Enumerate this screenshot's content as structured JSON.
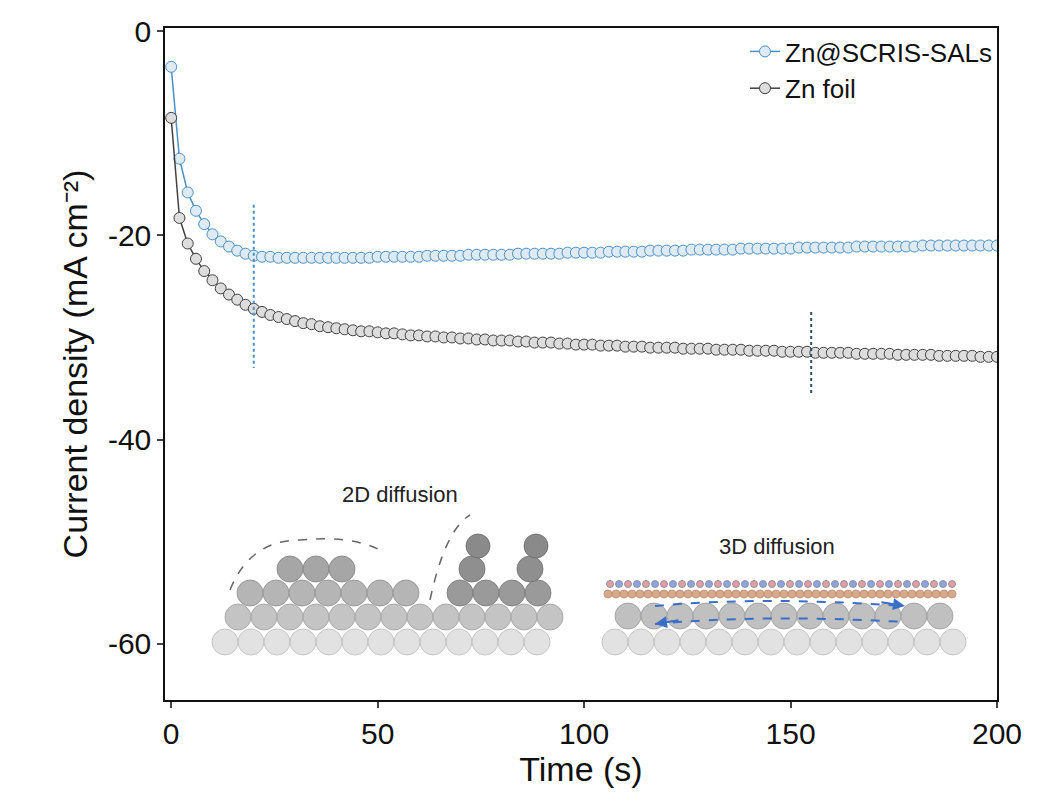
{
  "chart_data": {
    "type": "line",
    "x_label": "Time (s)",
    "y_label": "Current density (mA cm⁻²)",
    "x": [
      0,
      2,
      4,
      6,
      8,
      10,
      12,
      14,
      16,
      18,
      20,
      22,
      24,
      26,
      28,
      30,
      32,
      34,
      36,
      38,
      40,
      42,
      44,
      46,
      48,
      50,
      52,
      54,
      56,
      58,
      60,
      62,
      64,
      66,
      68,
      70,
      72,
      74,
      76,
      78,
      80,
      82,
      84,
      86,
      88,
      90,
      92,
      94,
      96,
      98,
      100,
      102,
      104,
      106,
      108,
      110,
      112,
      114,
      116,
      118,
      120,
      122,
      124,
      126,
      128,
      130,
      132,
      134,
      136,
      138,
      140,
      142,
      144,
      146,
      148,
      150,
      152,
      154,
      156,
      158,
      160,
      162,
      164,
      166,
      168,
      170,
      172,
      174,
      176,
      178,
      180,
      182,
      184,
      186,
      188,
      190,
      192,
      194,
      196,
      198,
      200
    ],
    "series": [
      {
        "name": "Zn@SCRIS-SALs",
        "color": "#4a90c8",
        "marker": "circle",
        "line_style": "solid",
        "values": [
          -3.5,
          -12.5,
          -15.8,
          -17.6,
          -18.9,
          -19.9,
          -20.6,
          -21.1,
          -21.5,
          -21.8,
          -22.0,
          -22.1,
          -22.1,
          -22.2,
          -22.2,
          -22.2,
          -22.2,
          -22.2,
          -22.2,
          -22.2,
          -22.2,
          -22.2,
          -22.2,
          -22.2,
          -22.2,
          -22.1,
          -22.1,
          -22.1,
          -22.1,
          -22.1,
          -22.1,
          -22.0,
          -22.0,
          -22.0,
          -22.0,
          -22.0,
          -21.9,
          -21.9,
          -21.9,
          -21.9,
          -21.9,
          -21.9,
          -21.8,
          -21.8,
          -21.8,
          -21.8,
          -21.8,
          -21.8,
          -21.7,
          -21.7,
          -21.7,
          -21.7,
          -21.7,
          -21.6,
          -21.6,
          -21.6,
          -21.6,
          -21.6,
          -21.5,
          -21.5,
          -21.5,
          -21.5,
          -21.5,
          -21.4,
          -21.4,
          -21.4,
          -21.4,
          -21.4,
          -21.4,
          -21.3,
          -21.3,
          -21.3,
          -21.3,
          -21.3,
          -21.3,
          -21.3,
          -21.2,
          -21.2,
          -21.2,
          -21.2,
          -21.2,
          -21.2,
          -21.2,
          -21.1,
          -21.1,
          -21.1,
          -21.1,
          -21.1,
          -21.1,
          -21.1,
          -21.1,
          -21.0,
          -21.0,
          -21.0,
          -21.0,
          -21.0,
          -21.0,
          -21.0,
          -21.0,
          -21.0,
          -21.0
        ]
      },
      {
        "name": "Zn foil",
        "color": "#404040",
        "marker": "circle",
        "line_style": "solid",
        "values": [
          -8.5,
          -18.3,
          -20.8,
          -22.3,
          -23.5,
          -24.4,
          -25.2,
          -25.8,
          -26.3,
          -26.8,
          -27.2,
          -27.5,
          -27.8,
          -28.0,
          -28.2,
          -28.4,
          -28.6,
          -28.7,
          -28.9,
          -29.0,
          -29.1,
          -29.2,
          -29.3,
          -29.4,
          -29.4,
          -29.5,
          -29.6,
          -29.6,
          -29.7,
          -29.8,
          -29.8,
          -29.9,
          -29.9,
          -30.0,
          -30.0,
          -30.1,
          -30.1,
          -30.2,
          -30.2,
          -30.3,
          -30.3,
          -30.3,
          -30.4,
          -30.4,
          -30.5,
          -30.5,
          -30.5,
          -30.6,
          -30.6,
          -30.7,
          -30.7,
          -30.7,
          -30.8,
          -30.8,
          -30.8,
          -30.9,
          -30.9,
          -30.9,
          -31.0,
          -31.0,
          -31.0,
          -31.0,
          -31.1,
          -31.1,
          -31.1,
          -31.1,
          -31.2,
          -31.2,
          -31.2,
          -31.2,
          -31.3,
          -31.3,
          -31.3,
          -31.3,
          -31.4,
          -31.4,
          -31.4,
          -31.4,
          -31.5,
          -31.5,
          -31.5,
          -31.5,
          -31.5,
          -31.6,
          -31.6,
          -31.6,
          -31.6,
          -31.6,
          -31.7,
          -31.7,
          -31.7,
          -31.7,
          -31.7,
          -31.8,
          -31.8,
          -31.8,
          -31.8,
          -31.8,
          -31.9,
          -31.9,
          -31.9
        ]
      }
    ],
    "reference_lines": [
      {
        "x": 20,
        "y": [
          -17,
          -33
        ],
        "color": "#4a90c8",
        "line_style": "dotted"
      },
      {
        "x": 155,
        "y": [
          -27.5,
          -35.5
        ],
        "color": "#2f4f5f",
        "line_style": "dotted"
      }
    ],
    "annotations": [
      "2D diffusion",
      "3D diffusion"
    ],
    "xlim": [
      -1.5,
      200
    ],
    "xticks": [
      0,
      50,
      100,
      150,
      200
    ],
    "ylim": [
      -65.5,
      0.3
    ],
    "yticks": [
      0,
      -20,
      -40,
      -60
    ],
    "grid": false,
    "legend": "top right"
  }
}
